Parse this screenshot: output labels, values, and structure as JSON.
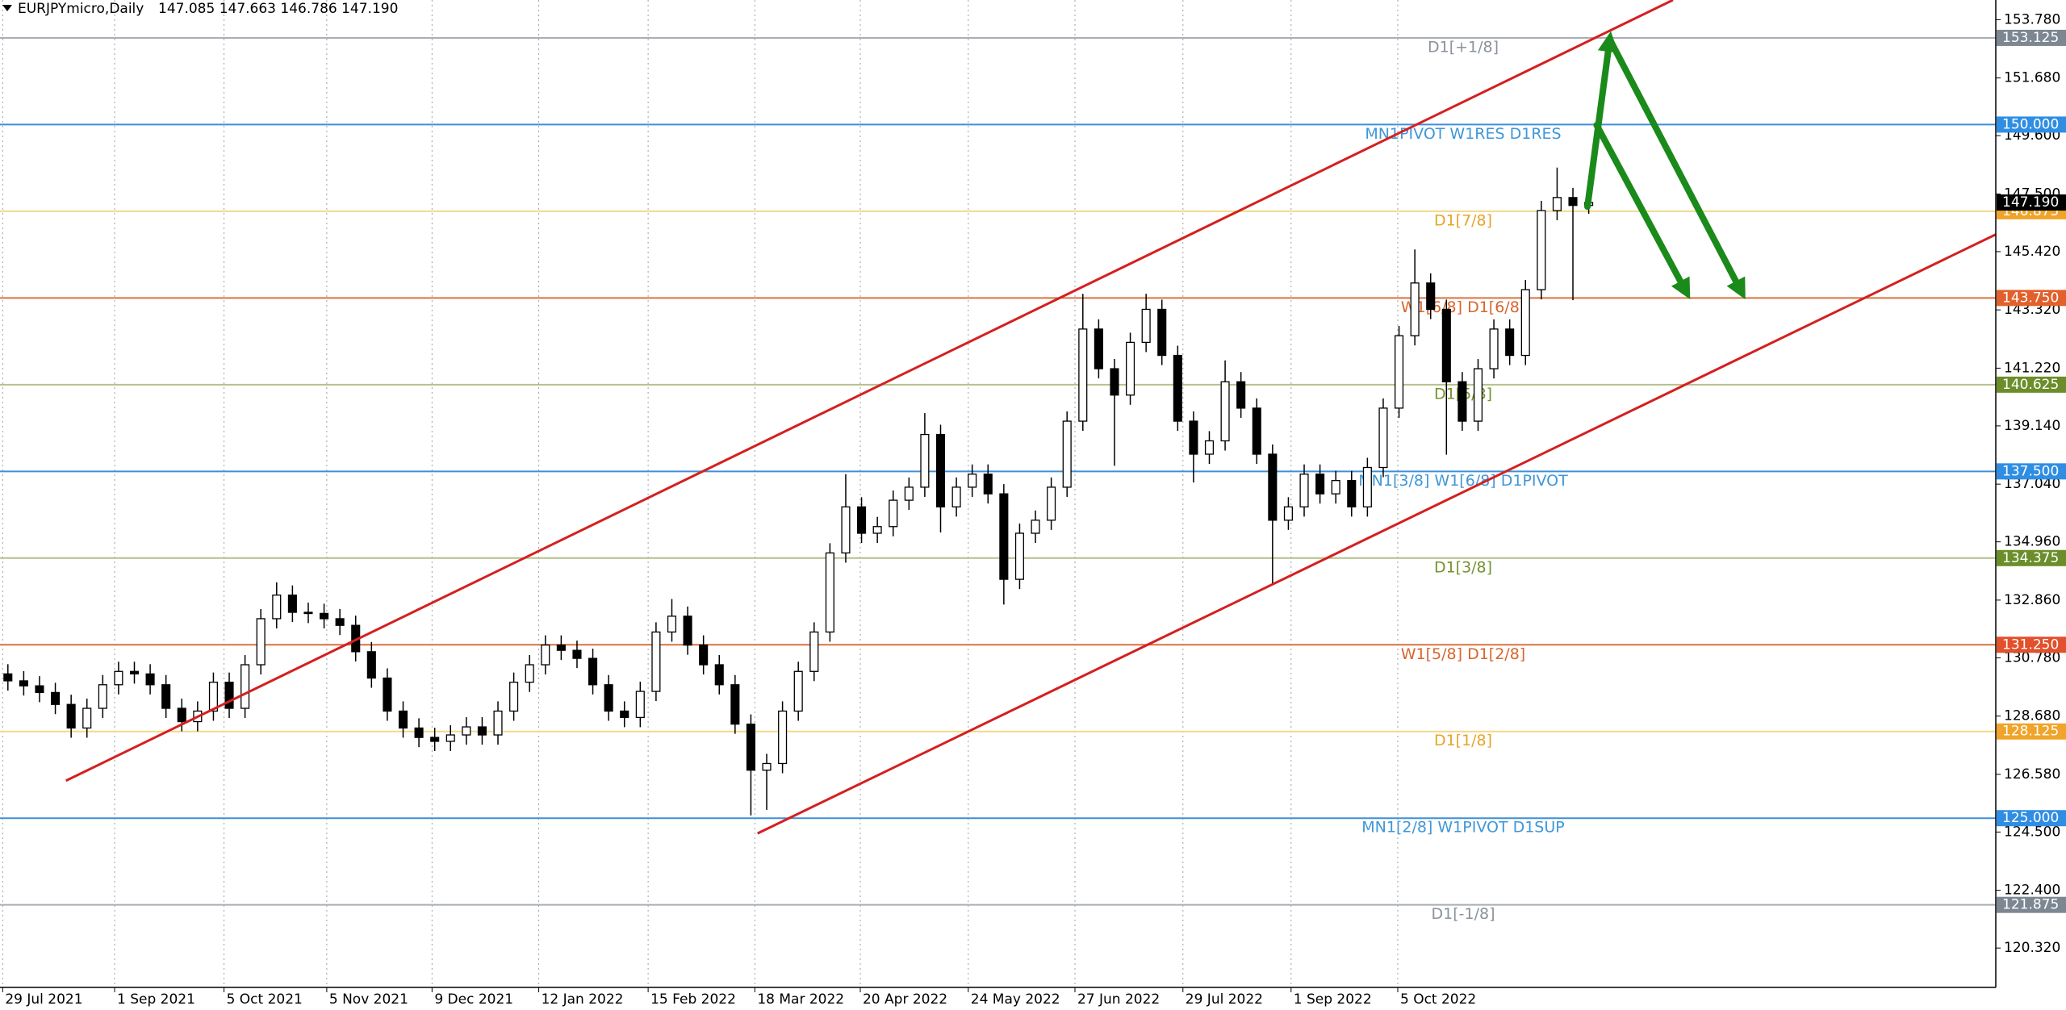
{
  "chart_data": {
    "type": "candlestick",
    "symbol": "EURJPYmicro,Daily",
    "ohlc_header": "147.085 147.663 146.786 147.190",
    "xlim": [
      -0.5,
      125.75
    ],
    "ylim": [
      118.9,
      154.49
    ],
    "xticks": [
      {
        "value": -0.33,
        "label": "29 Jul 2021"
      },
      {
        "value": 6.75,
        "label": "1 Sep 2021"
      },
      {
        "value": 13.67,
        "label": "5 Oct 2021"
      },
      {
        "value": 20.17,
        "label": "5 Nov 2021"
      },
      {
        "value": 26.83,
        "label": "9 Dec 2021"
      },
      {
        "value": 33.58,
        "label": "12 Jan 2022"
      },
      {
        "value": 40.5,
        "label": "15 Feb 2022"
      },
      {
        "value": 47.25,
        "label": "18 Mar 2022"
      },
      {
        "value": 53.92,
        "label": "20 Apr 2022"
      },
      {
        "value": 60.75,
        "label": "24 May 2022"
      },
      {
        "value": 67.5,
        "label": "27 Jun 2022"
      },
      {
        "value": 74.33,
        "label": "29 Jul 2022"
      },
      {
        "value": 81.17,
        "label": "1 Sep 2022"
      },
      {
        "value": 87.92,
        "label": "5 Oct 2022"
      }
    ],
    "yticks": [
      {
        "value": 153.78,
        "label": "153.780"
      },
      {
        "value": 151.68,
        "label": "151.680"
      },
      {
        "value": 149.6,
        "label": "149.600"
      },
      {
        "value": 147.5,
        "label": "147.500"
      },
      {
        "value": 145.42,
        "label": "145.420"
      },
      {
        "value": 143.32,
        "label": "143.320"
      },
      {
        "value": 141.22,
        "label": "141.220"
      },
      {
        "value": 139.14,
        "label": "139.140"
      },
      {
        "value": 137.04,
        "label": "137.040"
      },
      {
        "value": 134.96,
        "label": "134.960"
      },
      {
        "value": 132.86,
        "label": "132.860"
      },
      {
        "value": 130.78,
        "label": "130.780"
      },
      {
        "value": 128.68,
        "label": "128.680"
      },
      {
        "value": 126.58,
        "label": "126.580"
      },
      {
        "value": 124.5,
        "label": "124.500"
      },
      {
        "value": 122.4,
        "label": "122.400"
      },
      {
        "value": 120.32,
        "label": "120.320"
      }
    ],
    "up_color": "#ffffff",
    "down_color": "#000000",
    "open": [
      130.2,
      129.95,
      129.77,
      129.53,
      129.1,
      128.25,
      128.96,
      129.81,
      130.29,
      130.2,
      129.81,
      128.96,
      128.48,
      128.86,
      129.9,
      128.96,
      130.53,
      132.19,
      133.04,
      132.42,
      132.38,
      132.19,
      131.95,
      131.0,
      130.05,
      128.86,
      128.25,
      127.91,
      127.77,
      128.0,
      128.29,
      128.0,
      128.86,
      129.9,
      130.53,
      131.24,
      131.05,
      130.76,
      129.81,
      128.86,
      128.63,
      129.57,
      131.71,
      132.28,
      131.24,
      130.53,
      129.81,
      128.39,
      126.73,
      126.97,
      128.86,
      130.29,
      131.71,
      134.56,
      136.22,
      135.27,
      135.51,
      136.46,
      136.93,
      138.83,
      136.22,
      136.93,
      137.4,
      136.69,
      133.61,
      135.27,
      135.74,
      136.93,
      139.31,
      142.63,
      141.2,
      140.25,
      142.15,
      143.34,
      141.68,
      139.31,
      138.12,
      138.6,
      140.73,
      139.78,
      138.12,
      135.74,
      136.22,
      137.4,
      136.69,
      137.17,
      136.22,
      137.64,
      139.78,
      142.39,
      144.29,
      143.34,
      140.73,
      139.31,
      141.2,
      142.63,
      141.68,
      144.05,
      146.9,
      147.37,
      147.085
    ],
    "high": [
      130.55,
      130.3,
      130.12,
      129.88,
      129.45,
      129.31,
      130.16,
      130.64,
      130.64,
      130.55,
      130.16,
      129.31,
      129.21,
      130.25,
      130.25,
      130.88,
      132.54,
      133.5,
      133.39,
      132.77,
      132.73,
      132.54,
      132.3,
      131.35,
      130.4,
      129.21,
      128.6,
      128.26,
      128.35,
      128.64,
      128.64,
      129.21,
      130.25,
      130.88,
      131.59,
      131.59,
      131.4,
      131.11,
      130.16,
      129.21,
      129.92,
      132.06,
      132.9,
      132.63,
      131.59,
      130.88,
      130.16,
      128.74,
      127.32,
      129.21,
      130.64,
      132.06,
      134.91,
      137.4,
      136.57,
      135.86,
      136.81,
      137.28,
      139.6,
      139.18,
      137.28,
      137.75,
      137.75,
      137.04,
      135.62,
      136.09,
      137.28,
      139.66,
      143.9,
      142.98,
      141.55,
      142.5,
      143.9,
      143.69,
      142.03,
      139.66,
      138.95,
      141.5,
      141.08,
      140.13,
      138.47,
      136.57,
      137.75,
      137.75,
      137.52,
      137.52,
      137.99,
      140.13,
      142.74,
      145.5,
      144.64,
      143.69,
      141.08,
      141.55,
      142.98,
      142.98,
      144.4,
      147.25,
      148.45,
      147.72,
      147.663
    ],
    "low": [
      129.6,
      129.42,
      129.18,
      128.75,
      127.9,
      127.9,
      128.61,
      129.46,
      129.85,
      129.46,
      128.61,
      128.13,
      128.13,
      128.51,
      128.61,
      128.61,
      130.18,
      131.84,
      132.07,
      132.03,
      131.84,
      131.6,
      130.65,
      129.7,
      128.51,
      127.9,
      127.56,
      127.42,
      127.42,
      127.65,
      127.65,
      127.65,
      128.51,
      129.55,
      130.18,
      130.7,
      130.41,
      129.46,
      128.51,
      128.28,
      128.28,
      129.22,
      131.36,
      130.89,
      130.18,
      129.46,
      128.04,
      125.1,
      125.3,
      126.62,
      128.51,
      129.94,
      131.36,
      134.21,
      134.92,
      134.92,
      135.16,
      136.11,
      136.58,
      135.3,
      135.87,
      136.58,
      136.34,
      132.7,
      133.26,
      134.92,
      135.39,
      136.58,
      138.96,
      140.85,
      137.7,
      139.9,
      141.8,
      141.33,
      138.96,
      137.1,
      137.77,
      138.25,
      139.43,
      137.77,
      133.4,
      135.39,
      135.87,
      136.34,
      136.34,
      135.87,
      135.87,
      137.29,
      139.43,
      142.04,
      142.99,
      138.1,
      138.96,
      138.96,
      140.85,
      141.33,
      141.33,
      143.7,
      146.55,
      143.67,
      146.786
    ],
    "close": [
      129.95,
      129.77,
      129.53,
      129.1,
      128.25,
      128.96,
      129.81,
      130.29,
      130.2,
      129.81,
      128.96,
      128.48,
      128.86,
      129.9,
      128.96,
      130.53,
      132.19,
      133.04,
      132.42,
      132.38,
      132.19,
      131.95,
      131.0,
      130.05,
      128.86,
      128.25,
      127.91,
      127.77,
      128.0,
      128.29,
      128.0,
      128.86,
      129.9,
      130.53,
      131.24,
      131.05,
      130.76,
      129.81,
      128.86,
      128.63,
      129.57,
      131.71,
      132.28,
      131.24,
      130.53,
      129.81,
      128.39,
      126.73,
      126.97,
      128.86,
      130.29,
      131.71,
      134.56,
      136.22,
      135.27,
      135.51,
      136.46,
      136.93,
      138.83,
      136.22,
      136.93,
      137.4,
      136.69,
      133.61,
      135.27,
      135.74,
      136.93,
      139.31,
      142.63,
      141.2,
      140.25,
      142.15,
      143.34,
      141.68,
      139.31,
      138.12,
      138.6,
      140.73,
      139.78,
      138.12,
      135.74,
      136.22,
      137.4,
      136.69,
      137.17,
      136.22,
      137.64,
      139.78,
      142.39,
      144.29,
      143.34,
      140.73,
      139.31,
      141.2,
      142.63,
      141.68,
      144.05,
      146.9,
      147.37,
      147.085,
      147.19
    ],
    "levels": [
      {
        "value": 153.125,
        "value_label": "153.125",
        "label": "D1[+1/8]",
        "color": "#a9aeb4",
        "box_color": "#7d8792",
        "text_color": "#8a929b"
      },
      {
        "value": 150,
        "value_label": "150.000",
        "label": "MN1PIVOT W1RES D1RES",
        "color": "#3f8fd8",
        "box_color": "#2f8ee3",
        "text_color": "#3f97d8"
      },
      {
        "value": 146.875,
        "value_label": "146.875",
        "label": "D1[7/8]",
        "color": "#f1d98a",
        "box_color": "#f0a42a",
        "text_color": "#e6a42a"
      },
      {
        "value": 143.75,
        "value_label": "143.750",
        "label": "W1[6/8] D1[6/8]",
        "color": "#d9733f",
        "box_color": "#e2602c",
        "text_color": "#d9642c"
      },
      {
        "value": 140.625,
        "value_label": "140.625",
        "label": "D1[5/8]",
        "color": "#b5c08a",
        "box_color": "#6b8e2a",
        "text_color": "#76922f"
      },
      {
        "value": 137.5,
        "value_label": "137.500",
        "label": "MN1[3/8] W1[6/8] D1PIVOT",
        "color": "#3f8fd8",
        "box_color": "#2f8ee3",
        "text_color": "#3f97d8"
      },
      {
        "value": 134.375,
        "value_label": "134.375",
        "label": "D1[3/8]",
        "color": "#b5c08a",
        "box_color": "#6b8e2a",
        "text_color": "#76922f"
      },
      {
        "value": 131.25,
        "value_label": "131.250",
        "label": "W1[5/8] D1[2/8]",
        "color": "#d9733f",
        "box_color": "#e2502c",
        "text_color": "#d9642c"
      },
      {
        "value": 128.125,
        "value_label": "128.125",
        "label": "D1[1/8]",
        "color": "#f1d98a",
        "box_color": "#f0a42a",
        "text_color": "#e6a42a"
      },
      {
        "value": 125,
        "value_label": "125.000",
        "label": "MN1[2/8] W1PIVOT D1SUP",
        "color": "#3f8fd8",
        "box_color": "#2f8ee3",
        "text_color": "#3f97d8"
      },
      {
        "value": 121.875,
        "value_label": "121.875",
        "label": "D1[-1/8]",
        "color": "#a9aeb4",
        "box_color": "#7d8792",
        "text_color": "#8a929b"
      }
    ],
    "current_price": {
      "value": 147.19,
      "label": "147.190"
    },
    "trendlines": [
      {
        "color": "#d42020",
        "points": [
          [
            3.67,
            126.35
          ],
          [
            105.33,
            154.49
          ]
        ]
      },
      {
        "color": "#d42020",
        "points": [
          [
            47.42,
            124.45
          ],
          [
            125.75,
            146.04
          ]
        ]
      }
    ],
    "arrows": [
      {
        "color": "#1a8a1a",
        "points": [
          [
            99.92,
            147.04
          ],
          [
            101.33,
            153.07
          ],
          [
            109.67,
            143.96
          ]
        ]
      },
      {
        "color": "#1a8a1a",
        "points": [
          [
            100.5,
            149.98
          ],
          [
            106.17,
            143.96
          ]
        ]
      }
    ]
  }
}
